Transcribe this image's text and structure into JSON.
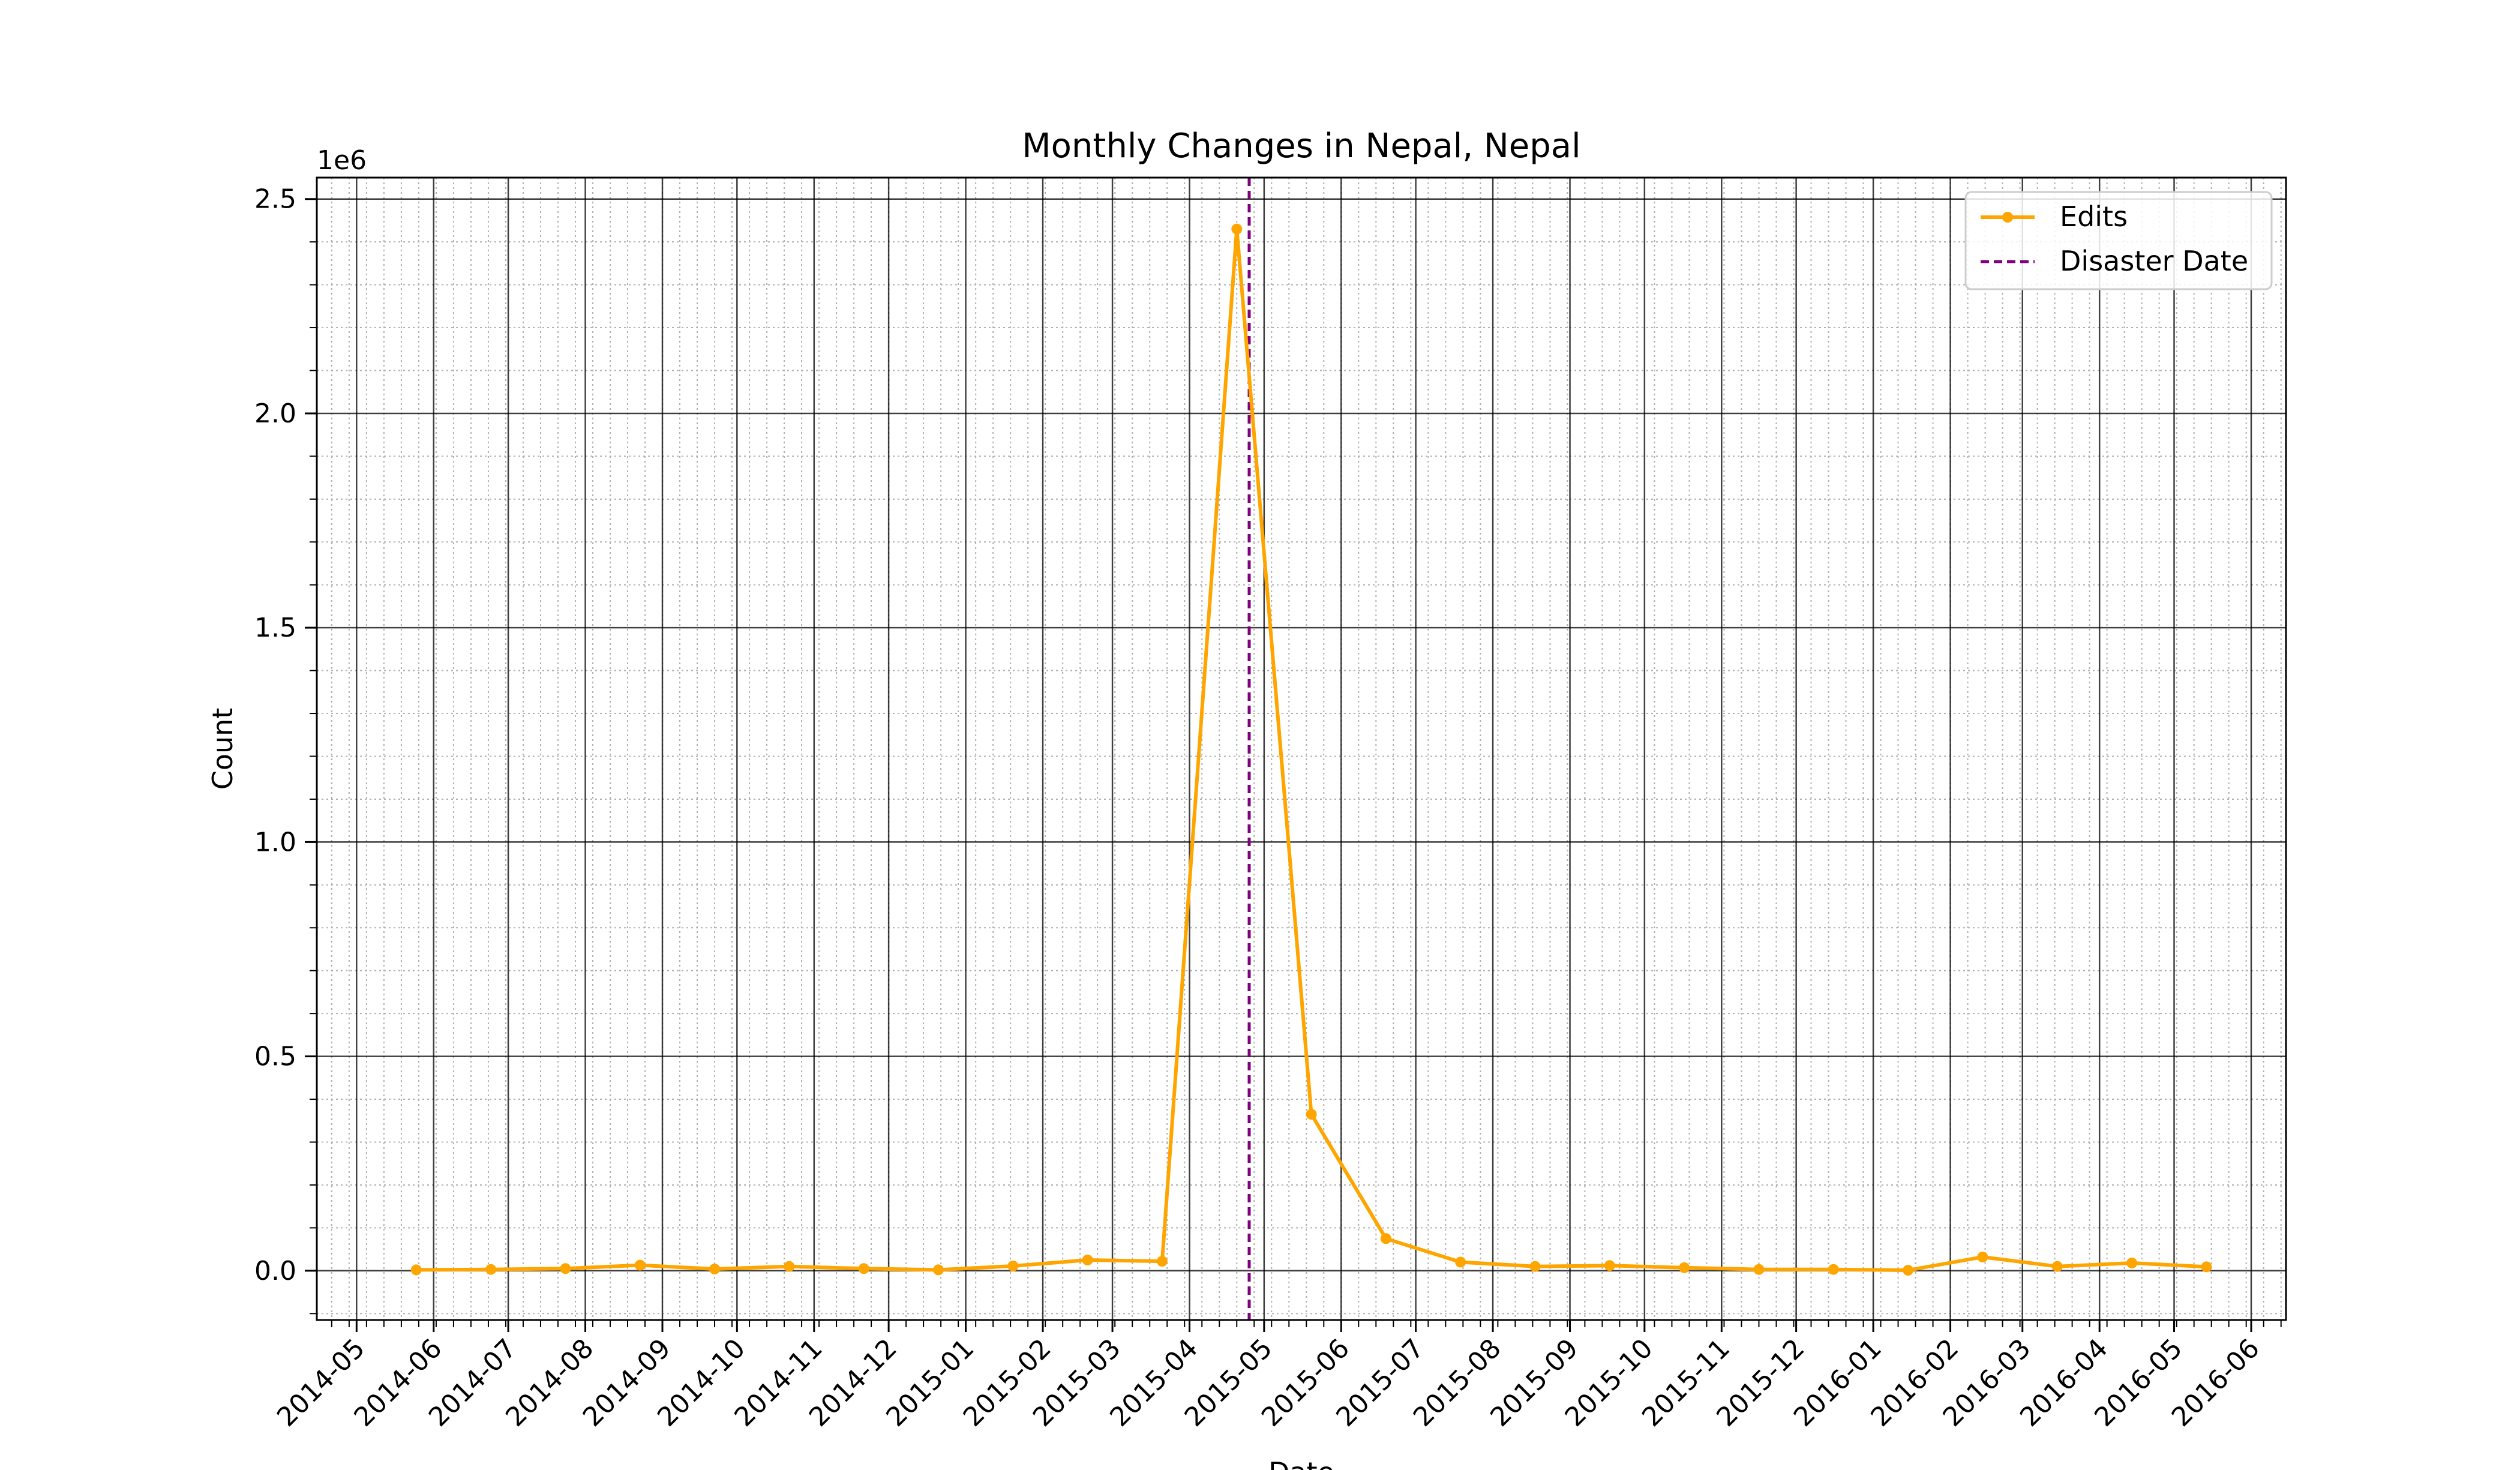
{
  "chart_data": {
    "type": "line",
    "title": "Monthly Changes in Nepal, Nepal",
    "xlabel": "Date",
    "ylabel": "Count",
    "y_offset_label": "1e6",
    "ylim": [
      -0.115,
      2.55
    ],
    "xlim": [
      "2014-04-15",
      "2016-06-15"
    ],
    "grid": true,
    "legend_position": "top-right",
    "x_tick_labels": [
      "2014-05",
      "2014-06",
      "2014-07",
      "2014-08",
      "2014-09",
      "2014-10",
      "2014-11",
      "2014-12",
      "2015-01",
      "2015-02",
      "2015-03",
      "2015-04",
      "2015-05",
      "2015-06",
      "2015-07",
      "2015-08",
      "2015-09",
      "2015-10",
      "2015-11",
      "2015-12",
      "2016-01",
      "2016-02",
      "2016-03",
      "2016-04",
      "2016-05",
      "2016-06"
    ],
    "y_ticks": [
      0.0,
      0.5,
      1.0,
      1.5,
      2.0,
      2.5
    ],
    "y_tick_labels": [
      "0.0",
      "0.5",
      "1.0",
      "1.5",
      "2.0",
      "2.5"
    ],
    "series": [
      {
        "name": "Edits",
        "color": "#FFA500",
        "x": [
          "2014-05-25",
          "2014-06-24",
          "2014-07-24",
          "2014-08-23",
          "2014-09-22",
          "2014-10-22",
          "2014-11-21",
          "2014-12-21",
          "2015-01-20",
          "2015-02-19",
          "2015-03-21",
          "2015-04-20",
          "2015-05-20",
          "2015-06-19",
          "2015-07-19",
          "2015-08-18",
          "2015-09-17",
          "2015-10-17",
          "2015-11-16",
          "2015-12-16",
          "2016-01-15",
          "2016-02-14",
          "2016-03-15",
          "2016-04-14",
          "2016-05-14"
        ],
        "values": [
          2000,
          3000,
          5000,
          13000,
          4000,
          10000,
          5000,
          2000,
          11000,
          25000,
          22000,
          2430000,
          365000,
          75000,
          20000,
          10000,
          12000,
          7000,
          3000,
          3000,
          1000,
          32000,
          10000,
          18000,
          9000
        ]
      }
    ],
    "annotations": [
      {
        "name": "Disaster Date",
        "type": "vline",
        "x": "2015-04-25",
        "color": "#800080",
        "style": "dashed"
      }
    ]
  }
}
